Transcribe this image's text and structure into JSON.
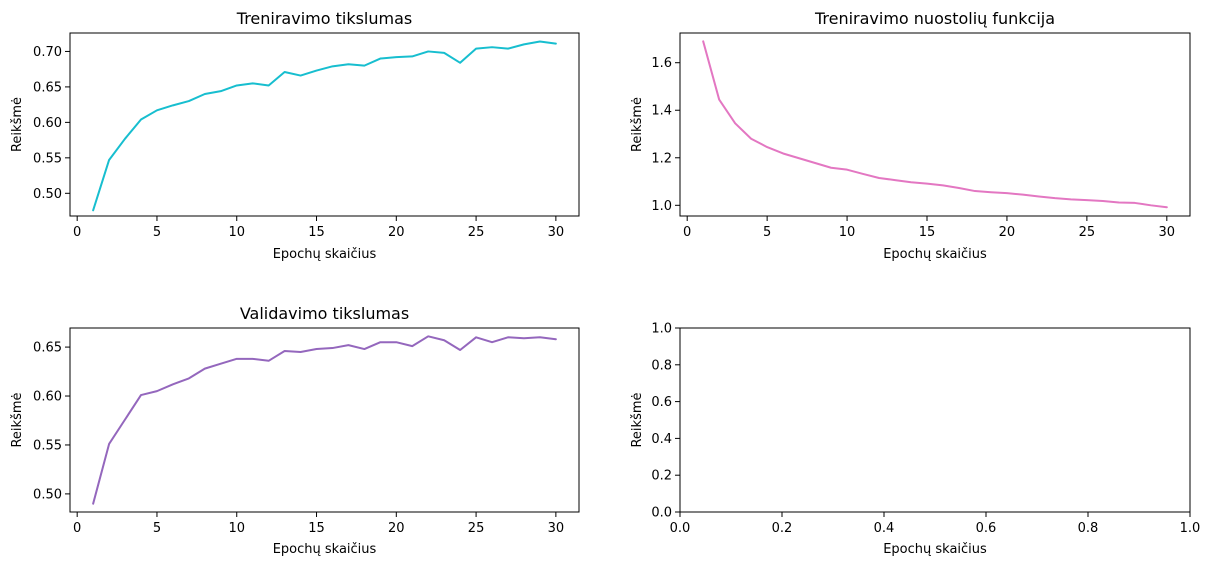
{
  "chart_data": [
    {
      "id": "train_acc",
      "type": "line",
      "title": "Treniravimo tikslumas",
      "xlabel": "Epochų skaičius",
      "ylabel": "Reikšmė",
      "xlim": [
        -0.45,
        31.45
      ],
      "ylim": [
        0.468,
        0.726
      ],
      "xticks": [
        0,
        5,
        10,
        15,
        20,
        25,
        30
      ],
      "yticks": [
        0.5,
        0.55,
        0.6,
        0.65,
        0.7
      ],
      "ytick_labels": [
        "0.50",
        "0.55",
        "0.60",
        "0.65",
        "0.70"
      ],
      "color": "#17becf",
      "series": [
        {
          "x": [
            1,
            2,
            3,
            4,
            5,
            6,
            7,
            8,
            9,
            10,
            11,
            12,
            13,
            14,
            15,
            16,
            17,
            18,
            19,
            20,
            21,
            22,
            23,
            24,
            25,
            26,
            27,
            28,
            29,
            30
          ],
          "values": [
            0.476,
            0.547,
            0.577,
            0.604,
            0.617,
            0.624,
            0.63,
            0.64,
            0.644,
            0.652,
            0.655,
            0.652,
            0.671,
            0.666,
            0.673,
            0.679,
            0.682,
            0.68,
            0.69,
            0.692,
            0.693,
            0.7,
            0.698,
            0.684,
            0.704,
            0.706,
            0.704,
            0.71,
            0.714,
            0.711
          ]
        }
      ]
    },
    {
      "id": "train_loss",
      "type": "line",
      "title": "Treniravimo nuostolių funkcija",
      "xlabel": "Epochų skaičius",
      "ylabel": "Reikšmė",
      "xlim": [
        -0.45,
        31.45
      ],
      "ylim": [
        0.955,
        1.725
      ],
      "xticks": [
        0,
        5,
        10,
        15,
        20,
        25,
        30
      ],
      "yticks": [
        1.0,
        1.2,
        1.4,
        1.6
      ],
      "ytick_labels": [
        "1.0",
        "1.2",
        "1.4",
        "1.6"
      ],
      "color": "#e377c2",
      "series": [
        {
          "x": [
            1,
            2,
            3,
            4,
            5,
            6,
            7,
            8,
            9,
            10,
            11,
            12,
            13,
            14,
            15,
            16,
            17,
            18,
            19,
            20,
            21,
            22,
            23,
            24,
            25,
            26,
            27,
            28,
            29,
            30
          ],
          "values": [
            1.69,
            1.445,
            1.345,
            1.28,
            1.245,
            1.218,
            1.198,
            1.178,
            1.158,
            1.15,
            1.132,
            1.115,
            1.106,
            1.097,
            1.091,
            1.084,
            1.073,
            1.06,
            1.055,
            1.051,
            1.045,
            1.037,
            1.03,
            1.025,
            1.022,
            1.018,
            1.012,
            1.01,
            1.0,
            0.992
          ]
        }
      ]
    },
    {
      "id": "val_acc",
      "type": "line",
      "title": "Validavimo tikslumas",
      "xlabel": "Epochų skaičius",
      "ylabel": "Reikšmė",
      "xlim": [
        -0.45,
        31.45
      ],
      "ylim": [
        0.4815,
        0.6695
      ],
      "xticks": [
        0,
        5,
        10,
        15,
        20,
        25,
        30
      ],
      "yticks": [
        0.5,
        0.55,
        0.6,
        0.65
      ],
      "ytick_labels": [
        "0.50",
        "0.55",
        "0.60",
        "0.65"
      ],
      "color": "#9467bd",
      "series": [
        {
          "x": [
            1,
            2,
            3,
            4,
            5,
            6,
            7,
            8,
            9,
            10,
            11,
            12,
            13,
            14,
            15,
            16,
            17,
            18,
            19,
            20,
            21,
            22,
            23,
            24,
            25,
            26,
            27,
            28,
            29,
            30
          ],
          "values": [
            0.49,
            0.551,
            0.576,
            0.601,
            0.605,
            0.612,
            0.618,
            0.628,
            0.633,
            0.638,
            0.638,
            0.636,
            0.646,
            0.645,
            0.648,
            0.649,
            0.652,
            0.648,
            0.655,
            0.655,
            0.651,
            0.661,
            0.657,
            0.647,
            0.66,
            0.655,
            0.66,
            0.659,
            0.66,
            0.658
          ]
        }
      ]
    },
    {
      "id": "empty",
      "type": "line",
      "title": "",
      "xlabel": "Epochų skaičius",
      "ylabel": "Reikšmė",
      "xlim": [
        0.0,
        1.0
      ],
      "ylim": [
        0.0,
        1.0
      ],
      "xticks": [
        0.0,
        0.2,
        0.4,
        0.6,
        0.8,
        1.0
      ],
      "yticks": [
        0.0,
        0.2,
        0.4,
        0.6,
        0.8,
        1.0
      ],
      "xtick_labels": [
        "0.0",
        "0.2",
        "0.4",
        "0.6",
        "0.8",
        "1.0"
      ],
      "ytick_labels": [
        "0.0",
        "0.2",
        "0.4",
        "0.6",
        "0.8",
        "1.0"
      ],
      "color": "#1f77b4",
      "series": []
    }
  ]
}
